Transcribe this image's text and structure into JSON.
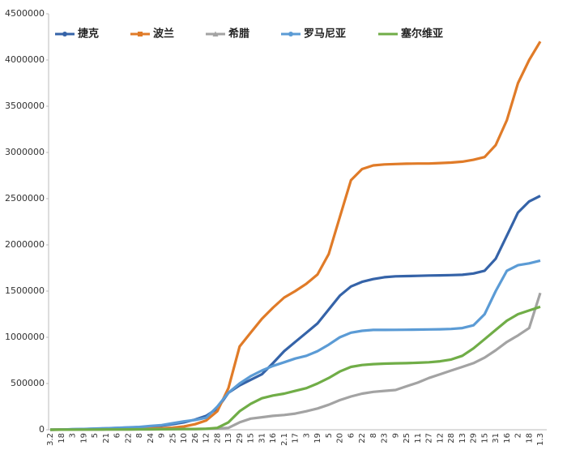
{
  "chart_data": {
    "type": "line",
    "categories": [
      "3.2",
      "18",
      "3",
      "19",
      "5",
      "21",
      "6",
      "22",
      "8",
      "24",
      "9",
      "25",
      "10",
      "26",
      "12",
      "28",
      "13",
      "29",
      "15",
      "31",
      "16",
      "2.1",
      "17",
      "3",
      "19",
      "5",
      "20",
      "6",
      "22",
      "8",
      "23",
      "9",
      "25",
      "11",
      "27",
      "12",
      "28",
      "13",
      "29",
      "15",
      "31",
      "16",
      "2",
      "18",
      "1.3"
    ],
    "ylim": [
      0,
      4500000
    ],
    "yticks": [
      0,
      500000,
      1000000,
      1500000,
      2000000,
      2500000,
      3000000,
      3500000,
      4000000,
      4500000
    ],
    "grid": false,
    "legend": "top",
    "series": [
      {
        "name": "捷克",
        "color": "#3563a8",
        "marker": "circle",
        "values": [
          0,
          2000,
          4000,
          7000,
          10000,
          14000,
          18000,
          23000,
          28000,
          35000,
          45000,
          60000,
          80000,
          110000,
          150000,
          230000,
          400000,
          480000,
          540000,
          600000,
          720000,
          850000,
          950000,
          1050000,
          1150000,
          1300000,
          1450000,
          1550000,
          1600000,
          1630000,
          1650000,
          1660000,
          1662000,
          1665000,
          1668000,
          1670000,
          1673000,
          1676000,
          1690000,
          1720000,
          1850000,
          2100000,
          2350000,
          2470000,
          2530000
        ]
      },
      {
        "name": "波兰",
        "color": "#e07b28",
        "marker": "square",
        "values": [
          0,
          1000,
          2000,
          3000,
          4000,
          5000,
          6000,
          8000,
          10000,
          13000,
          17000,
          22000,
          35000,
          60000,
          100000,
          200000,
          450000,
          900000,
          1050000,
          1200000,
          1320000,
          1430000,
          1500000,
          1580000,
          1680000,
          1900000,
          2300000,
          2700000,
          2820000,
          2860000,
          2870000,
          2875000,
          2878000,
          2880000,
          2880000,
          2885000,
          2890000,
          2900000,
          2920000,
          2950000,
          3080000,
          3350000,
          3750000,
          4000000,
          4200000
        ]
      },
      {
        "name": "希腊",
        "color": "#a3a3a3",
        "marker": "triangle",
        "values": [
          0,
          500,
          1000,
          1500,
          2000,
          2500,
          3000,
          3500,
          4000,
          4500,
          5000,
          6000,
          7000,
          8000,
          10000,
          13000,
          20000,
          80000,
          120000,
          135000,
          150000,
          160000,
          175000,
          200000,
          230000,
          270000,
          320000,
          360000,
          390000,
          410000,
          420000,
          430000,
          470000,
          510000,
          560000,
          600000,
          640000,
          680000,
          720000,
          780000,
          860000,
          950000,
          1020000,
          1100000,
          1480000
        ]
      },
      {
        "name": "罗马尼亚",
        "color": "#5b9bd5",
        "marker": "circle",
        "values": [
          0,
          2000,
          5000,
          8000,
          12000,
          16000,
          20000,
          25000,
          30000,
          40000,
          50000,
          70000,
          90000,
          105000,
          130000,
          250000,
          400000,
          500000,
          580000,
          640000,
          690000,
          730000,
          770000,
          800000,
          850000,
          920000,
          1000000,
          1050000,
          1070000,
          1080000,
          1080000,
          1081000,
          1082000,
          1083000,
          1085000,
          1087000,
          1090000,
          1100000,
          1130000,
          1250000,
          1500000,
          1720000,
          1780000,
          1800000,
          1830000
        ]
      },
      {
        "name": "塞尔维亚",
        "color": "#70ad47",
        "marker": "none",
        "values": [
          0,
          500,
          1000,
          1500,
          2000,
          2500,
          3000,
          3500,
          4000,
          4500,
          5000,
          6000,
          7000,
          8000,
          10000,
          20000,
          80000,
          200000,
          280000,
          340000,
          370000,
          390000,
          420000,
          450000,
          500000,
          560000,
          630000,
          680000,
          700000,
          710000,
          715000,
          718000,
          720000,
          725000,
          730000,
          740000,
          760000,
          800000,
          880000,
          980000,
          1080000,
          1180000,
          1250000,
          1290000,
          1330000
        ]
      }
    ]
  }
}
